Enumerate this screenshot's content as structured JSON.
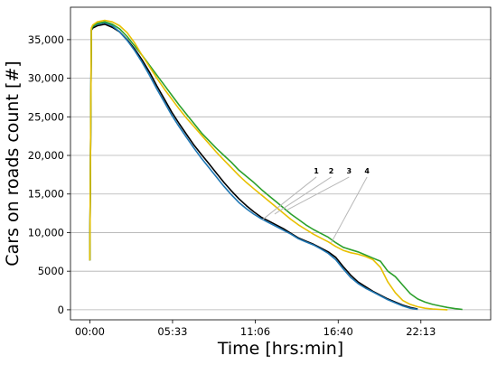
{
  "chart_data": {
    "type": "line",
    "xlabel": "Time [hrs:min]",
    "ylabel": "Cars on roads count [#]",
    "x_ticks": [
      "00:00",
      "05:33",
      "11:06",
      "16:40",
      "22:13"
    ],
    "x_tick_values_hours": [
      0,
      5.55,
      11.1,
      16.667,
      22.217
    ],
    "y_ticks": [
      "0",
      "5000",
      "10,000",
      "15,000",
      "20,000",
      "25,000",
      "30,000",
      "35,000"
    ],
    "y_tick_values": [
      0,
      5000,
      10000,
      15000,
      20000,
      25000,
      30000,
      35000
    ],
    "xlim_hours": [
      -1.3,
      26.9
    ],
    "ylim": [
      -1300,
      39200
    ],
    "grid": "horizontal",
    "legend": "none",
    "annotations": [
      "1",
      "2",
      "3",
      "4"
    ],
    "series": [
      {
        "color": "#000000",
        "x_hours": [
          0,
          0.1,
          0.2,
          0.5,
          1.0,
          1.5,
          2.0,
          2.5,
          3.0,
          3.5,
          4.0,
          4.5,
          5.0,
          5.5,
          6.0,
          6.5,
          7.0,
          7.5,
          8.0,
          8.5,
          9.0,
          9.5,
          10.0,
          10.5,
          11.0,
          11.5,
          12.0,
          12.5,
          13.0,
          13.5,
          14.0,
          14.5,
          15.0,
          15.5,
          16.0,
          16.5,
          17.0,
          17.5,
          18.0,
          18.5,
          19.0,
          19.5,
          20.0,
          20.5,
          21.0,
          21.5,
          22.0
        ],
        "values": [
          6400,
          36200,
          36500,
          36800,
          37000,
          36600,
          36000,
          35000,
          33800,
          32400,
          30800,
          29000,
          27300,
          25600,
          24100,
          22700,
          21300,
          20100,
          18900,
          17700,
          16500,
          15400,
          14400,
          13500,
          12700,
          12000,
          11500,
          11000,
          10500,
          9900,
          9300,
          8900,
          8500,
          8000,
          7500,
          6800,
          5600,
          4500,
          3600,
          3000,
          2400,
          1900,
          1400,
          1000,
          600,
          300,
          100
        ]
      },
      {
        "color": "#1f77b4",
        "x_hours": [
          0,
          0.1,
          0.2,
          0.5,
          1.0,
          1.5,
          2.0,
          2.5,
          3.0,
          3.5,
          4.0,
          4.5,
          5.0,
          5.5,
          6.0,
          6.5,
          7.0,
          7.5,
          8.0,
          8.5,
          9.0,
          9.5,
          10.0,
          10.5,
          11.0,
          11.5,
          12.0,
          12.5,
          13.0,
          13.5,
          14.0,
          14.5,
          15.0,
          15.5,
          16.0,
          16.5,
          17.0,
          17.5,
          18.0,
          18.5,
          19.0,
          19.5,
          20.0,
          20.5,
          21.0,
          21.5,
          22.0
        ],
        "values": [
          6400,
          36300,
          36700,
          37000,
          37200,
          36800,
          36000,
          34900,
          33600,
          32100,
          30400,
          28600,
          26900,
          25200,
          23700,
          22300,
          20900,
          19600,
          18400,
          17200,
          16000,
          14900,
          13900,
          13100,
          12400,
          11800,
          11300,
          10800,
          10300,
          9800,
          9200,
          8800,
          8400,
          7900,
          7300,
          6500,
          5300,
          4200,
          3400,
          2800,
          2300,
          1800,
          1300,
          900,
          500,
          200,
          50
        ]
      },
      {
        "color": "#2ca02c",
        "x_hours": [
          0,
          0.1,
          0.2,
          0.5,
          1.0,
          1.5,
          2.0,
          2.5,
          3.0,
          3.5,
          4.0,
          4.5,
          5.0,
          5.5,
          6.0,
          6.5,
          7.0,
          7.5,
          8.0,
          8.5,
          9.0,
          9.5,
          10.0,
          10.5,
          11.0,
          11.5,
          12.0,
          12.5,
          13.0,
          13.5,
          14.0,
          14.5,
          15.0,
          15.5,
          16.0,
          16.5,
          17.0,
          17.5,
          18.0,
          18.5,
          19.0,
          19.5,
          20.0,
          20.5,
          21.0,
          21.5,
          22.0,
          22.5,
          23.0,
          23.5,
          24.0,
          24.5,
          25.0
        ],
        "values": [
          6400,
          36300,
          36700,
          37100,
          37300,
          37000,
          36400,
          35400,
          34200,
          33000,
          31700,
          30400,
          29100,
          27800,
          26500,
          25300,
          24100,
          22900,
          21900,
          20900,
          20000,
          19100,
          18100,
          17300,
          16500,
          15600,
          14800,
          14000,
          13200,
          12400,
          11700,
          11000,
          10400,
          9900,
          9400,
          8700,
          8100,
          7800,
          7500,
          7100,
          6700,
          6300,
          5000,
          4300,
          3200,
          2100,
          1400,
          1000,
          700,
          500,
          300,
          150,
          50
        ]
      },
      {
        "color": "#e8c000",
        "x_hours": [
          0,
          0.1,
          0.2,
          0.5,
          1.0,
          1.5,
          2.0,
          2.5,
          3.0,
          3.5,
          4.0,
          4.5,
          5.0,
          5.5,
          6.0,
          6.5,
          7.0,
          7.5,
          8.0,
          8.5,
          9.0,
          9.5,
          10.0,
          10.5,
          11.0,
          11.5,
          12.0,
          12.5,
          13.0,
          13.5,
          14.0,
          14.5,
          15.0,
          15.5,
          16.0,
          16.5,
          17.0,
          17.5,
          18.0,
          18.5,
          19.0,
          19.5,
          20.0,
          20.5,
          21.0,
          21.5,
          22.0,
          22.5,
          23.0,
          23.5,
          24.0
        ],
        "values": [
          6400,
          36500,
          36900,
          37300,
          37500,
          37300,
          36800,
          35900,
          34600,
          33000,
          31500,
          30000,
          28600,
          27300,
          26000,
          24800,
          23700,
          22600,
          21500,
          20400,
          19400,
          18400,
          17400,
          16500,
          15700,
          14900,
          14100,
          13300,
          12500,
          11700,
          11000,
          10400,
          9800,
          9300,
          8800,
          8200,
          7700,
          7400,
          7200,
          6900,
          6500,
          5500,
          3600,
          2200,
          1200,
          700,
          400,
          200,
          100,
          50,
          0
        ]
      }
    ]
  }
}
